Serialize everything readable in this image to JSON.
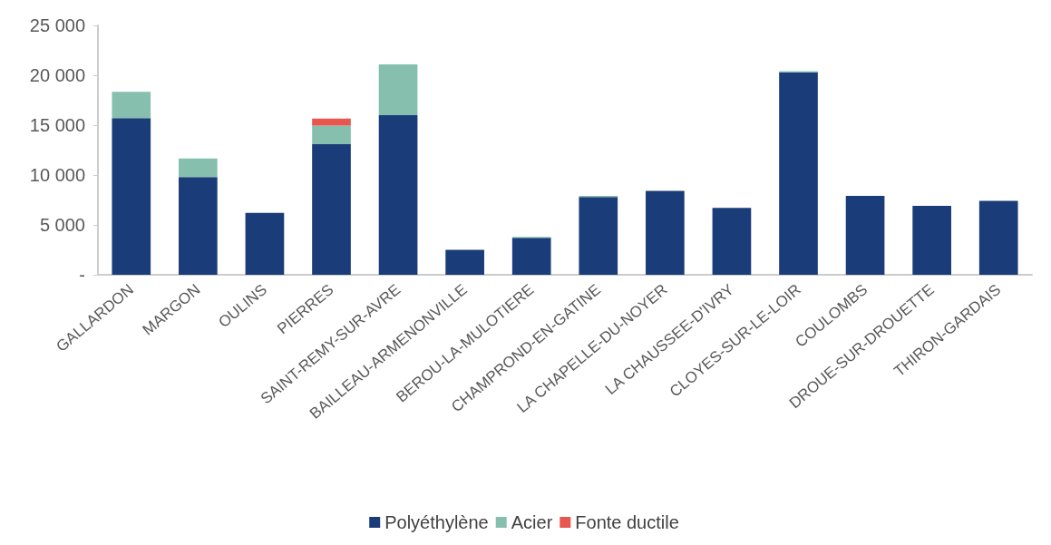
{
  "chart_data": {
    "type": "bar",
    "stacked": true,
    "categories": [
      "GALLARDON",
      "MARGON",
      "OULINS",
      "PIERRES",
      "SAINT-REMY-SUR-AVRE",
      "BAILLEAU-ARMENONVILLE",
      "BEROU-LA-MULOTIERE",
      "CHAMPROND-EN-GATINE",
      "LA CHAPELLE-DU-NOYER",
      "LA CHAUSSEE-D'IVRY",
      "CLOYES-SUR-LE-LOIR",
      "COULOMBS",
      "DROUE-SUR-DROUETTE",
      "THIRON-GARDAIS"
    ],
    "series": [
      {
        "name": "Polyéthylène",
        "color": "#1a3c78",
        "values": [
          15700,
          9800,
          6200,
          13100,
          16000,
          2500,
          3700,
          7800,
          8400,
          6700,
          20300,
          7900,
          6900,
          7400
        ]
      },
      {
        "name": "Acier",
        "color": "#86bfae",
        "values": [
          2650,
          1850,
          null,
          1850,
          5100,
          null,
          100,
          100,
          null,
          null,
          100,
          null,
          null,
          null
        ]
      },
      {
        "name": "Fonte ductile",
        "color": "#e8574f",
        "values": [
          null,
          null,
          null,
          700,
          null,
          null,
          null,
          null,
          null,
          null,
          null,
          null,
          null,
          null
        ]
      }
    ],
    "ylim": [
      0,
      25000
    ],
    "yticks": [
      {
        "value": 0,
        "label": "-"
      },
      {
        "value": 5000,
        "label": "5 000"
      },
      {
        "value": 10000,
        "label": "10 000"
      },
      {
        "value": 15000,
        "label": "15 000"
      },
      {
        "value": 20000,
        "label": "20 000"
      },
      {
        "value": 25000,
        "label": "25 000"
      }
    ],
    "grid": false,
    "legend": "bottom"
  }
}
